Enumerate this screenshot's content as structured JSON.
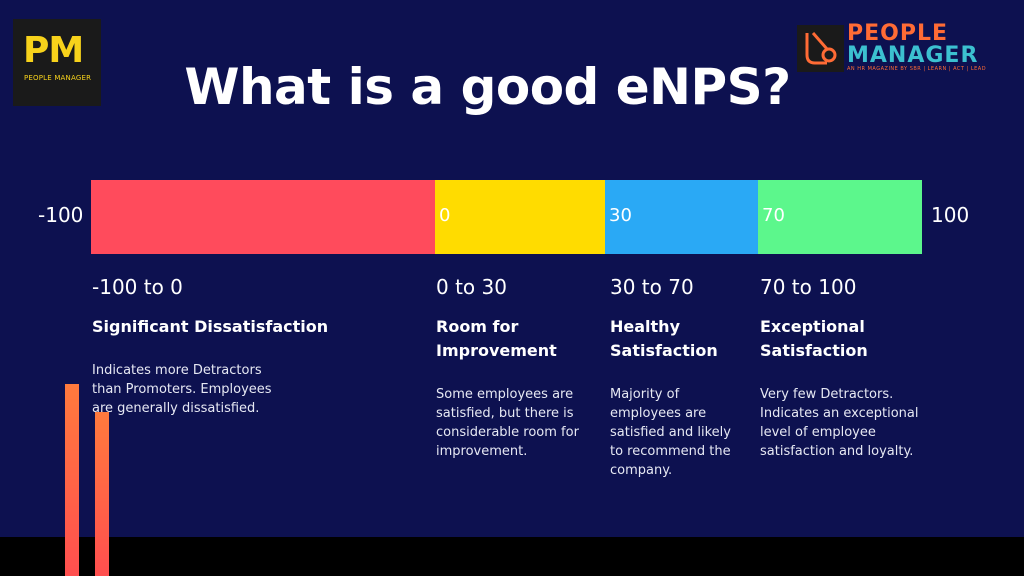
{
  "logo_left": {
    "letters": "PM",
    "subtitle": "PEOPLE MANAGER"
  },
  "logo_right": {
    "line1": "PEOPLE",
    "line2": "MANAGER",
    "tagline": "AN HR MAGAZINE BY SBR | LEARN | ACT | LEAD"
  },
  "title": "What is a good eNPS?",
  "scale": {
    "min_label": "-100",
    "max_label": "100"
  },
  "colors": {
    "background": "#0d1150",
    "red": "#ff4b5c",
    "yellow": "#ffdc00",
    "blue": "#2aa9f5",
    "green": "#5cf78c"
  },
  "segments": [
    {
      "marker": "",
      "range": "-100 to 0",
      "heading": "Significant Dissatisfaction",
      "description": "Indicates more Detractors than Promoters. Employees are generally dissatisfied.",
      "start": -100,
      "end": 0
    },
    {
      "marker": "0",
      "range": "0 to 30",
      "heading": "Room for Improvement",
      "description": "Some employees are satisfied, but there is considerable room for improvement.",
      "start": 0,
      "end": 30
    },
    {
      "marker": "30",
      "range": "30 to 70",
      "heading": "Healthy Satisfaction",
      "description": "Majority of employees are satisfied and likely to recommend the company.",
      "start": 30,
      "end": 70
    },
    {
      "marker": "70",
      "range": "70 to 100",
      "heading": "Exceptional Satisfaction",
      "description": "Very few Detractors. Indicates an exceptional level of employee satisfaction and loyalty.",
      "start": 70,
      "end": 100
    }
  ]
}
